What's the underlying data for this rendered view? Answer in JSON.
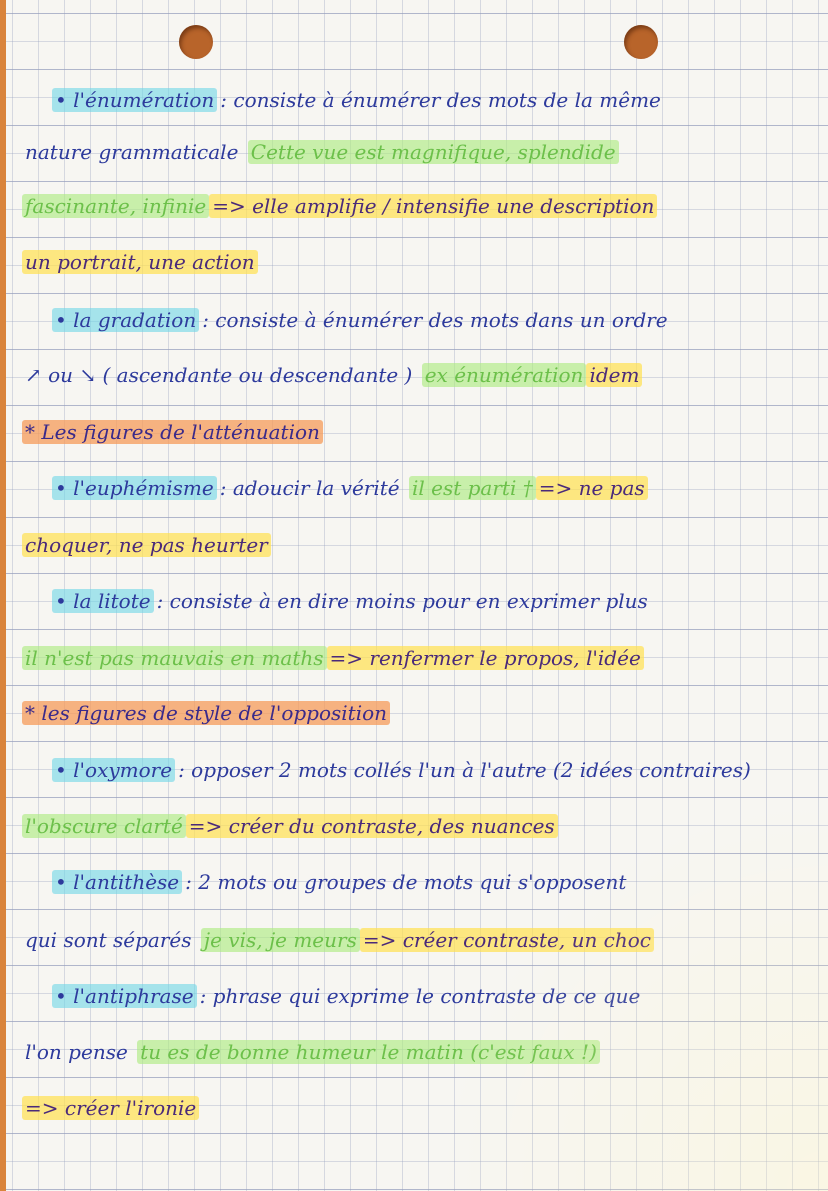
{
  "page": {
    "ink_color": "#2d3a9c",
    "highlight_colors": {
      "cyan": "#6ed7e6",
      "green": "#afeb82",
      "yellow": "#ffe150",
      "orange": "#f59b5a"
    },
    "lines": [
      {
        "indent": true,
        "segments": [
          {
            "text": "• l'énumération",
            "hl": "cyan"
          },
          {
            "text": ": consiste à énumérer des mots de la même",
            "hl": ""
          }
        ]
      },
      {
        "indent": false,
        "segments": [
          {
            "text": "nature grammaticale ",
            "hl": ""
          },
          {
            "text": "Cette vue est magnifique, splendide",
            "hl": "green"
          }
        ]
      },
      {
        "indent": false,
        "segments": [
          {
            "text": "fascinante, infinie",
            "hl": "green"
          },
          {
            "text": "=> elle amplifie / intensifie une description",
            "hl": "yellow"
          }
        ]
      },
      {
        "indent": false,
        "segments": [
          {
            "text": "un portrait, une action",
            "hl": "yellow"
          }
        ]
      },
      {
        "indent": true,
        "segments": [
          {
            "text": "• la gradation",
            "hl": "cyan"
          },
          {
            "text": ": consiste à énumérer des mots dans un ordre",
            "hl": ""
          }
        ]
      },
      {
        "indent": false,
        "segments": [
          {
            "text": "↗ ou ↘ ( ascendante ou descendante ) ",
            "hl": ""
          },
          {
            "text": "ex énumération",
            "hl": "green"
          },
          {
            "text": "idem",
            "hl": "yellow"
          }
        ]
      },
      {
        "indent": false,
        "segments": [
          {
            "text": "* Les figures de l'atténuation",
            "hl": "orange"
          }
        ]
      },
      {
        "indent": true,
        "segments": [
          {
            "text": "• l'euphémisme",
            "hl": "cyan"
          },
          {
            "text": ": adoucir la vérité ",
            "hl": ""
          },
          {
            "text": "il est parti †",
            "hl": "green"
          },
          {
            "text": "=> ne pas",
            "hl": "yellow"
          }
        ]
      },
      {
        "indent": false,
        "segments": [
          {
            "text": "choquer, ne pas heurter",
            "hl": "yellow"
          }
        ]
      },
      {
        "indent": true,
        "segments": [
          {
            "text": "• la litote",
            "hl": "cyan"
          },
          {
            "text": ": consiste à en dire moins pour en exprimer plus",
            "hl": ""
          }
        ]
      },
      {
        "indent": false,
        "segments": [
          {
            "text": "il n'est pas mauvais en maths",
            "hl": "green"
          },
          {
            "text": "=> renfermer le propos, l'idée",
            "hl": "yellow"
          }
        ]
      },
      {
        "indent": false,
        "segments": [
          {
            "text": "* les figures de style de l'opposition",
            "hl": "orange"
          }
        ]
      },
      {
        "indent": true,
        "segments": [
          {
            "text": "• l'oxymore",
            "hl": "cyan"
          },
          {
            "text": ": opposer 2 mots collés l'un à l'autre (2 idées contraires)",
            "hl": ""
          }
        ]
      },
      {
        "indent": false,
        "segments": [
          {
            "text": "l'obscure clarté",
            "hl": "green"
          },
          {
            "text": "=> créer du contraste, des nuances",
            "hl": "yellow"
          }
        ]
      },
      {
        "indent": true,
        "segments": [
          {
            "text": "• l'antithèse",
            "hl": "cyan"
          },
          {
            "text": ": 2 mots ou groupes de mots qui s'opposent",
            "hl": ""
          }
        ]
      },
      {
        "indent": false,
        "segments": [
          {
            "text": "qui sont séparés ",
            "hl": ""
          },
          {
            "text": "je vis, je meurs",
            "hl": "green"
          },
          {
            "text": "=> créer contraste, un choc",
            "hl": "yellow"
          }
        ]
      },
      {
        "indent": true,
        "segments": [
          {
            "text": "• l'antiphrase",
            "hl": "cyan"
          },
          {
            "text": ": phrase qui exprime le contraste de ce que",
            "hl": ""
          }
        ]
      },
      {
        "indent": false,
        "segments": [
          {
            "text": "l'on pense ",
            "hl": ""
          },
          {
            "text": "tu es de bonne humeur le matin (c'est faux !)",
            "hl": "green"
          }
        ]
      },
      {
        "indent": false,
        "segments": [
          {
            "text": "=> créer l'ironie",
            "hl": "yellow"
          }
        ]
      }
    ]
  }
}
